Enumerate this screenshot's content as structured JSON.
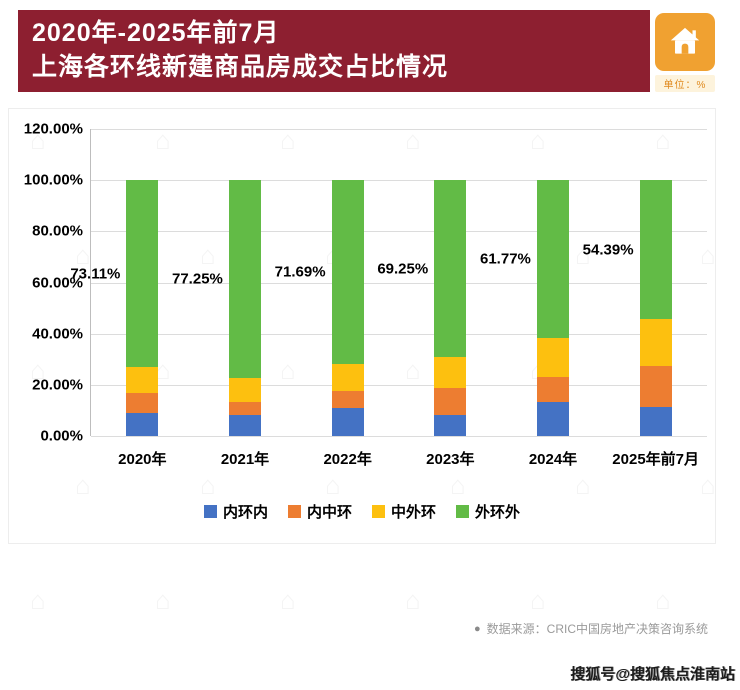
{
  "header": {
    "title_line1": "2020年-2025年前7月",
    "title_line2": "上海各环线新建商品房成交占比情况",
    "unit_label": "单位：%"
  },
  "colors": {
    "banner": "#8d1f30",
    "house_icon_bg": "#f0a131",
    "unit_tag_bg": "#fdf3dc",
    "unit_tag_text": "#e08a1e"
  },
  "chart_data": {
    "type": "bar",
    "stacked": true,
    "title": "2020年-2025年前7月上海各环线新建商品房成交占比情况",
    "xlabel": "",
    "ylabel": "",
    "ylim": [
      0,
      120
    ],
    "grid": true,
    "legend_position": "bottom",
    "categories": [
      "2020年",
      "2021年",
      "2022年",
      "2023年",
      "2024年",
      "2025年前7月"
    ],
    "series": [
      {
        "name": "内环内",
        "color": "#4472c4",
        "values": [
          9.0,
          8.2,
          10.9,
          8.2,
          13.3,
          11.3
        ]
      },
      {
        "name": "内中环",
        "color": "#ed7d31",
        "values": [
          7.8,
          5.1,
          6.7,
          10.5,
          9.8,
          16.1
        ]
      },
      {
        "name": "中外环",
        "color": "#fdc00f",
        "values": [
          10.09,
          9.45,
          10.71,
          12.05,
          15.13,
          18.21
        ]
      },
      {
        "name": "外环外",
        "color": "#62bb46",
        "values": [
          73.11,
          77.25,
          71.69,
          69.25,
          61.77,
          54.39
        ]
      }
    ],
    "data_labels": [
      "73.11%",
      "77.25%",
      "71.69%",
      "69.25%",
      "61.77%",
      "54.39%"
    ],
    "data_label_series": "外环外",
    "y_ticks": [
      {
        "value": 0,
        "label": "0.00%"
      },
      {
        "value": 20,
        "label": "20.00%"
      },
      {
        "value": 40,
        "label": "40.00%"
      },
      {
        "value": 60,
        "label": "60.00%"
      },
      {
        "value": 80,
        "label": "80.00%"
      },
      {
        "value": 100,
        "label": "100.00%"
      },
      {
        "value": 120,
        "label": "120.00%"
      }
    ]
  },
  "footer": {
    "bullet": "●",
    "source": "数据来源：CRIC中国房地产决策咨询系统",
    "watermark": "搜狐号@搜狐焦点淮南站"
  },
  "decor": {
    "background_glyph": "⌂"
  }
}
